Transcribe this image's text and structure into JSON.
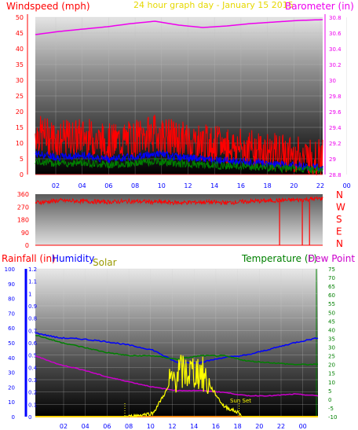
{
  "panels": {
    "wind_baro": {
      "left_title": "Windspeed (mph)",
      "center_title": "24 hour graph day - January 15 2015",
      "right_title": "Barometer (in)",
      "left_ticks": [
        "0",
        "5",
        "10",
        "15",
        "20",
        "25",
        "30",
        "35",
        "40",
        "45",
        "50"
      ],
      "right_ticks": [
        "28.8",
        "29",
        "29.2",
        "29.4",
        "29.6",
        "29.8",
        "30",
        "30.2",
        "30.4",
        "30.6",
        "30.8"
      ]
    },
    "direction": {
      "left_ticks": [
        "0",
        "90",
        "180",
        "270",
        "360"
      ],
      "compass": [
        "N",
        "W",
        "S",
        "E",
        "N"
      ]
    },
    "lower": {
      "rain_title": "Rainfall (in)",
      "humidity_title": "Humidity",
      "solar_title": "Solar",
      "temp_title": "Temperature (F)",
      "dew_title": "Dew Point (F)",
      "annotation": "Sun Set",
      "rain_ticks": [
        "0",
        "10",
        "20",
        "30",
        "40",
        "50",
        "60",
        "70",
        "80",
        "90",
        "100"
      ],
      "humidity_ticks": [
        "0",
        "0.1",
        "0.2",
        "0.3",
        "0.4",
        "0.5",
        "0.6",
        "0.7",
        "0.8",
        "0.9",
        "1",
        "1.1",
        "1.2"
      ],
      "temp_ticks": [
        "-10",
        "-5",
        "0",
        "5",
        "10",
        "15",
        "20",
        "25",
        "30",
        "35",
        "40",
        "45",
        "50",
        "55",
        "60",
        "65",
        "70",
        "75"
      ]
    },
    "x_ticks": [
      "02",
      "04",
      "06",
      "08",
      "10",
      "12",
      "14",
      "16",
      "18",
      "20",
      "22",
      "00"
    ]
  },
  "colors": {
    "windspeed": "#ff0000",
    "gust_blue": "#0000ff",
    "avg_green": "#008000",
    "barometer": "#ee00ee",
    "direction": "#ff0000",
    "rainfall": "#0000ff",
    "humidity": "#0000ff",
    "solar": "#ffff00",
    "temperature": "#008000",
    "dewpoint": "#cc00cc",
    "axis_red": "#ff0000",
    "axis_blue": "#0000ff",
    "axis_green": "#008000",
    "axis_magenta": "#ee00ee",
    "title_gold": "#e6d800"
  },
  "chart_data": [
    {
      "type": "line",
      "title": "24 hour graph day - January 15 2015",
      "x": [
        0,
        2,
        4,
        6,
        8,
        10,
        12,
        14,
        16,
        18,
        20,
        22,
        24
      ],
      "series": [
        {
          "name": "Windspeed (mph)",
          "values": [
            12,
            10,
            11,
            9,
            10,
            12,
            10,
            9,
            8,
            7,
            6,
            5,
            4
          ]
        },
        {
          "name": "Barometer (in)",
          "values": [
            30.58,
            30.62,
            30.65,
            30.68,
            30.72,
            30.75,
            30.7,
            30.67,
            30.69,
            30.72,
            30.74,
            30.76,
            30.77
          ]
        }
      ],
      "ylim_left": [
        0,
        50
      ],
      "ylim_right": [
        28.8,
        30.8
      ]
    },
    {
      "type": "line",
      "x": [
        0,
        2,
        4,
        6,
        8,
        10,
        12,
        14,
        16,
        18,
        20,
        22,
        24
      ],
      "series": [
        {
          "name": "Direction",
          "values": [
            300,
            315,
            310,
            305,
            310,
            305,
            300,
            305,
            300,
            310,
            315,
            320,
            330
          ]
        }
      ],
      "ylim": [
        0,
        360
      ]
    },
    {
      "type": "line",
      "x": [
        0,
        2,
        4,
        6,
        8,
        10,
        12,
        14,
        16,
        18,
        20,
        22,
        24
      ],
      "series": [
        {
          "name": "Humidity",
          "values": [
            0.68,
            0.64,
            0.63,
            0.61,
            0.58,
            0.54,
            0.44,
            0.44,
            0.48,
            0.5,
            0.55,
            0.6,
            0.64
          ]
        },
        {
          "name": "Temperature (F)",
          "values": [
            37,
            33,
            30,
            27,
            25,
            25,
            23,
            25,
            25,
            22,
            21,
            20,
            20
          ]
        },
        {
          "name": "Dew Point (F)",
          "values": [
            25,
            20,
            17,
            13,
            10,
            7,
            5,
            5,
            4,
            2,
            2,
            3,
            2
          ]
        },
        {
          "name": "Solar",
          "values": [
            0,
            0,
            0,
            0,
            0,
            2,
            25,
            26,
            6,
            0,
            0,
            0,
            0
          ]
        }
      ],
      "ylim_humidity": [
        0,
        1.2
      ],
      "ylim_temp": [
        -10,
        75
      ]
    }
  ]
}
